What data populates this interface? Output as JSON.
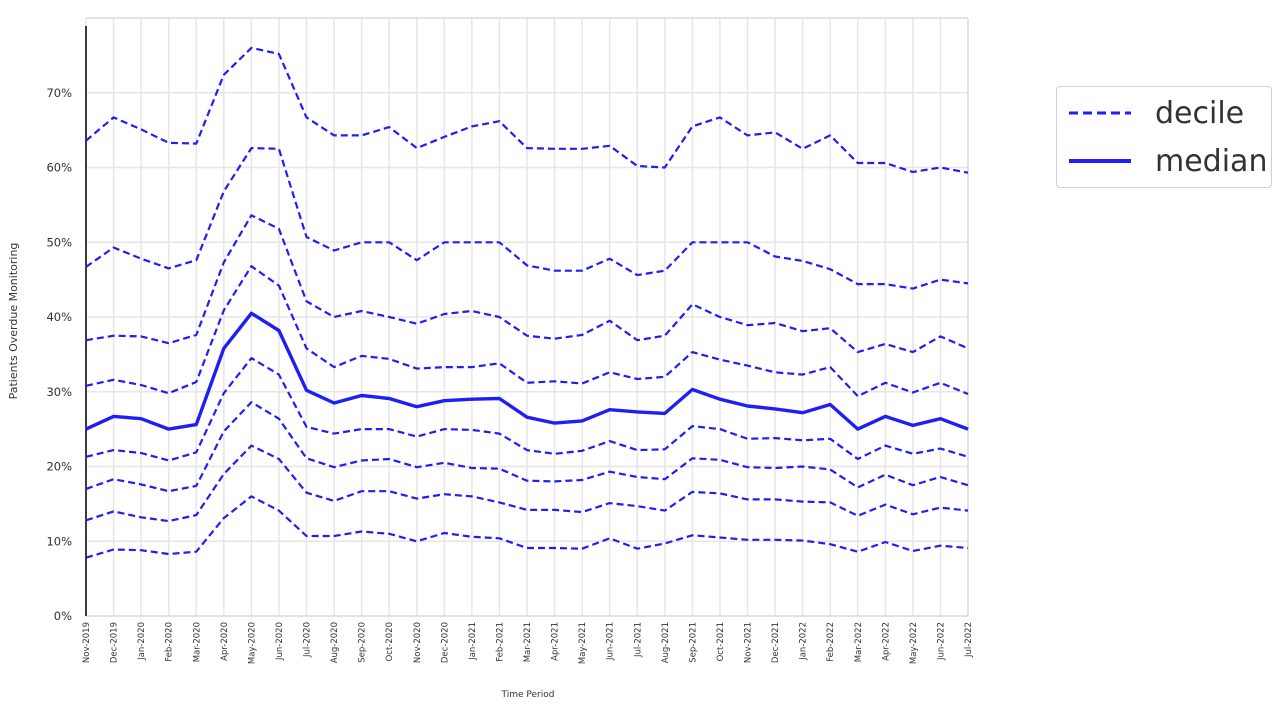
{
  "chart_data": {
    "type": "line",
    "xlabel": "Time Period",
    "ylabel": "Patients Overdue Monitoring",
    "ylim": [
      0,
      80
    ],
    "yticks": [
      0,
      10,
      20,
      30,
      40,
      50,
      60,
      70
    ],
    "ytick_labels": [
      "0%",
      "10%",
      "20%",
      "30%",
      "40%",
      "50%",
      "60%",
      "70%"
    ],
    "categories": [
      "Nov-2019",
      "Dec-2019",
      "Jan-2020",
      "Feb-2020",
      "Mar-2020",
      "Apr-2020",
      "May-2020",
      "Jun-2020",
      "Jul-2020",
      "Aug-2020",
      "Sep-2020",
      "Oct-2020",
      "Nov-2020",
      "Dec-2020",
      "Jan-2021",
      "Feb-2021",
      "Mar-2021",
      "Apr-2021",
      "May-2021",
      "Jun-2021",
      "Jul-2021",
      "Aug-2021",
      "Sep-2021",
      "Oct-2021",
      "Nov-2021",
      "Dec-2021",
      "Jan-2022",
      "Feb-2022",
      "Mar-2022",
      "Apr-2022",
      "May-2022",
      "Jun-2022",
      "Jul-2022"
    ],
    "grid": true,
    "legend_position": "outside-right",
    "colors": {
      "line": "#1f1ff5",
      "grid": "#e6e6e6",
      "axis": "#000000",
      "text": "#333333"
    },
    "legend": [
      {
        "label": "decile",
        "style": "dashed"
      },
      {
        "label": "median",
        "style": "solid"
      }
    ],
    "series": [
      {
        "style": "dashed",
        "values": [
          7.8,
          8.9,
          8.8,
          8.3,
          8.6,
          13.1,
          16.0,
          14.1,
          10.7,
          10.7,
          11.3,
          11.0,
          10.0,
          11.1,
          10.6,
          10.4,
          9.1,
          9.1,
          9.0,
          10.4,
          9.0,
          9.7,
          10.8,
          10.5,
          10.2,
          10.2,
          10.1,
          9.6,
          8.6,
          9.9,
          8.7,
          9.4,
          9.1
        ]
      },
      {
        "style": "dashed",
        "values": [
          12.8,
          14.0,
          13.2,
          12.7,
          13.5,
          19.0,
          22.8,
          21.0,
          16.5,
          15.4,
          16.7,
          16.7,
          15.7,
          16.3,
          16.0,
          15.2,
          14.2,
          14.2,
          13.9,
          15.1,
          14.7,
          14.1,
          16.6,
          16.4,
          15.6,
          15.6,
          15.3,
          15.2,
          13.4,
          14.9,
          13.6,
          14.5,
          14.1
        ]
      },
      {
        "style": "dashed",
        "values": [
          17.0,
          18.3,
          17.6,
          16.7,
          17.4,
          24.7,
          28.6,
          26.4,
          21.1,
          19.9,
          20.8,
          21.0,
          19.9,
          20.5,
          19.8,
          19.7,
          18.1,
          18.0,
          18.2,
          19.3,
          18.6,
          18.3,
          21.1,
          20.9,
          19.9,
          19.8,
          20.0,
          19.6,
          17.2,
          18.9,
          17.5,
          18.6,
          17.5
        ]
      },
      {
        "style": "dashed",
        "values": [
          21.3,
          22.2,
          21.8,
          20.8,
          21.9,
          29.8,
          34.5,
          32.3,
          25.3,
          24.4,
          25.0,
          25.0,
          24.0,
          25.0,
          24.9,
          24.4,
          22.2,
          21.7,
          22.1,
          23.4,
          22.2,
          22.3,
          25.4,
          25.0,
          23.7,
          23.8,
          23.5,
          23.7,
          21.0,
          22.8,
          21.7,
          22.4,
          21.3
        ]
      },
      {
        "style": "solid",
        "values": [
          25.0,
          26.7,
          26.4,
          25.0,
          25.6,
          35.8,
          40.5,
          38.2,
          30.2,
          28.5,
          29.5,
          29.1,
          28.0,
          28.8,
          29.0,
          29.1,
          26.6,
          25.8,
          26.1,
          27.6,
          27.3,
          27.1,
          30.3,
          29.0,
          28.1,
          27.7,
          27.2,
          28.3,
          25.0,
          26.7,
          25.5,
          26.4,
          25.0
        ]
      },
      {
        "style": "dashed",
        "values": [
          30.8,
          31.6,
          30.9,
          29.8,
          31.3,
          40.9,
          46.8,
          44.2,
          35.8,
          33.3,
          34.8,
          34.4,
          33.1,
          33.3,
          33.3,
          33.8,
          31.2,
          31.4,
          31.1,
          32.6,
          31.7,
          32.0,
          35.3,
          34.3,
          33.5,
          32.6,
          32.3,
          33.3,
          29.4,
          31.2,
          29.9,
          31.2,
          29.7
        ]
      },
      {
        "style": "dashed",
        "values": [
          36.9,
          37.5,
          37.4,
          36.5,
          37.6,
          47.3,
          53.6,
          51.8,
          42.1,
          40.0,
          40.8,
          40.0,
          39.1,
          40.4,
          40.8,
          40.0,
          37.5,
          37.1,
          37.6,
          39.5,
          36.9,
          37.5,
          41.7,
          40.0,
          38.9,
          39.2,
          38.1,
          38.5,
          35.3,
          36.4,
          35.3,
          37.4,
          35.8
        ]
      },
      {
        "style": "dashed",
        "values": [
          46.7,
          49.3,
          47.8,
          46.5,
          47.6,
          56.8,
          62.6,
          62.5,
          50.7,
          48.9,
          50.0,
          50.0,
          47.6,
          50.0,
          50.0,
          50.0,
          46.9,
          46.2,
          46.2,
          47.8,
          45.6,
          46.2,
          50.0,
          50.0,
          50.0,
          48.1,
          47.5,
          46.4,
          44.4,
          44.4,
          43.8,
          45.0,
          44.5
        ]
      },
      {
        "style": "dashed",
        "values": [
          63.6,
          66.7,
          65.1,
          63.3,
          63.2,
          72.4,
          76.0,
          75.2,
          66.7,
          64.3,
          64.3,
          65.4,
          62.6,
          64.1,
          65.5,
          66.2,
          62.6,
          62.5,
          62.5,
          62.9,
          60.2,
          60.0,
          65.5,
          66.7,
          64.3,
          64.7,
          62.5,
          64.3,
          60.6,
          60.6,
          59.4,
          60.0,
          59.3
        ]
      }
    ]
  }
}
